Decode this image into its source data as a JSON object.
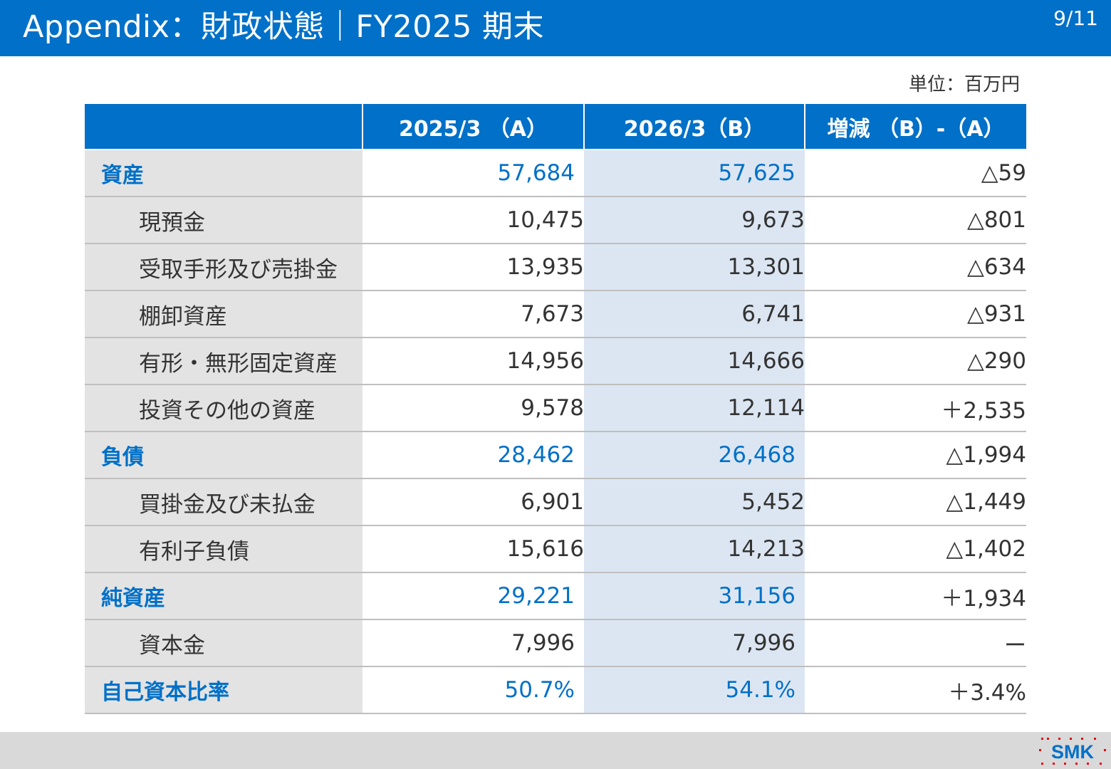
{
  "header": {
    "title": "Appendix：財政状態｜FY2025 期末",
    "page_number": "9/11"
  },
  "unit_label": "単位：百万円",
  "table": {
    "columns": [
      "",
      "2025/3 （A）",
      "2026/3（B）",
      "増減 （B）-（A）"
    ],
    "rows": [
      {
        "label": "資産",
        "a": "57,684",
        "b": "57,625",
        "diff": "△59"
      },
      {
        "label": "現預金",
        "a": "10,475",
        "b": "9,673",
        "diff": "△801"
      },
      {
        "label": "受取手形及び売掛金",
        "a": "13,935",
        "b": "13,301",
        "diff": "△634"
      },
      {
        "label": "棚卸資産",
        "a": "7,673",
        "b": "6,741",
        "diff": "△931"
      },
      {
        "label": "有形・無形固定資産",
        "a": "14,956",
        "b": "14,666",
        "diff": "△290"
      },
      {
        "label": "投資その他の資産",
        "a": "9,578",
        "b": "12,114",
        "diff": "＋2,535"
      },
      {
        "label": "負債",
        "a": "28,462",
        "b": "26,468",
        "diff": "△1,994"
      },
      {
        "label": "買掛金及び未払金",
        "a": "6,901",
        "b": "5,452",
        "diff": "△1,449"
      },
      {
        "label": "有利子負債",
        "a": "15,616",
        "b": "14,213",
        "diff": "△1,402"
      },
      {
        "label": "純資産",
        "a": "29,221",
        "b": "31,156",
        "diff": "＋1,934"
      },
      {
        "label": "資本金",
        "a": "7,996",
        "b": "7,996",
        "diff": "ー"
      },
      {
        "label": "自己資本比率",
        "a": "50.7%",
        "b": "54.1%",
        "diff": "＋3.4%"
      }
    ]
  },
  "logo": {
    "text": "SMK",
    "color": "#0070c8",
    "dot_color": "#e60012"
  },
  "colors": {
    "accent": "#0070c8",
    "label_bg": "#e3e3e3",
    "highlight_col_bg": "#dce6f2"
  }
}
